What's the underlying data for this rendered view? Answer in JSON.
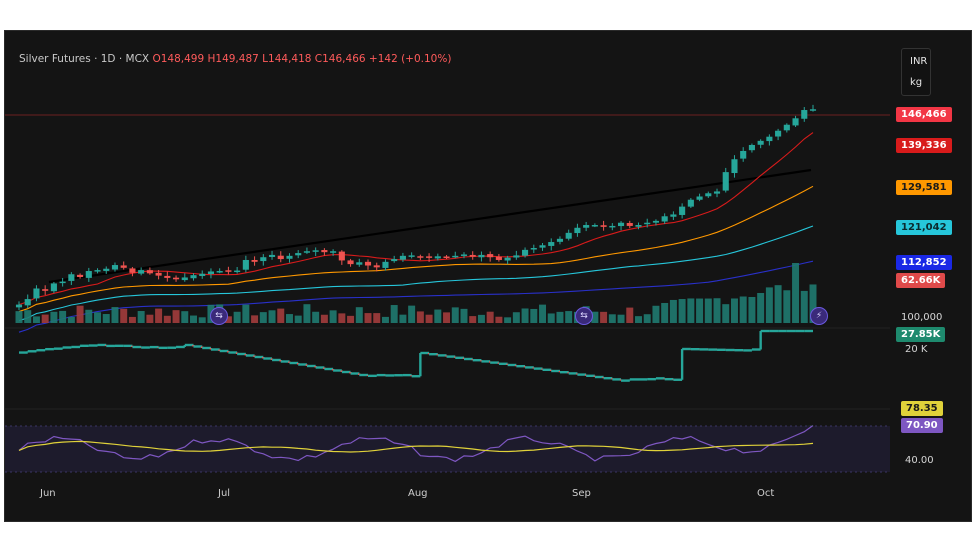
{
  "legend": {
    "symbol": "Silver Futures · 1D · MCX",
    "open": "O148,499",
    "high": "H149,487",
    "low": "L144,418",
    "close": "C146,466",
    "change": "+142 (+0.10%)"
  },
  "unit_box": {
    "currency": "INR",
    "unit": "kg"
  },
  "price_scale": {
    "last_price": "146,466",
    "ma_levels": [
      {
        "value": "139,336",
        "bg": "#d81b1b",
        "color": "#ffffff"
      },
      {
        "value": "129,581",
        "bg": "#ff9800",
        "color": "#1a1a1a"
      },
      {
        "value": "121,042",
        "bg": "#26c6da",
        "color": "#0b2a2e"
      },
      {
        "value": "112,852",
        "bg": "#1a28e6",
        "color": "#ffffff"
      }
    ],
    "volume_label": "62.66K",
    "volume_axis": "100,000"
  },
  "indicator2": {
    "value": "27.85K",
    "axis": "20 K"
  },
  "rsi": {
    "ma_value": "78.35",
    "value": "70.90",
    "axis": "40.00"
  },
  "months": [
    "Jun",
    "Jul",
    "Aug",
    "Sep",
    "Oct"
  ],
  "colors": {
    "up": "#26a69a",
    "down": "#ef5350",
    "ma_red": "#d81b1b",
    "ma_orange": "#ff9800",
    "ma_cyan": "#26c6da",
    "ma_blue": "#2930c9",
    "rsi_line": "#7e57c2",
    "rsi_ma": "#e0d23a"
  },
  "icons": [
    "dividend-icon",
    "dividend-icon",
    "lightning-icon"
  ],
  "chart_data": {
    "type": "candlestick",
    "title": "Silver Futures · 1D · MCX",
    "dates_range": [
      "Jun",
      "Oct"
    ],
    "price_range": [
      100000,
      150000
    ],
    "closes": [
      104000,
      105200,
      107500,
      107000,
      108600,
      109000,
      110600,
      110000,
      111300,
      111500,
      111800,
      112600,
      112000,
      110900,
      111500,
      110800,
      110300,
      109800,
      109500,
      109900,
      110400,
      110700,
      111200,
      111300,
      111200,
      111400,
      113700,
      113300,
      114300,
      114800,
      113900,
      114600,
      115200,
      115600,
      115800,
      115400,
      115600,
      113600,
      112800,
      113200,
      112500,
      112100,
      113300,
      113900,
      114600,
      114700,
      114500,
      114200,
      114500,
      114300,
      114600,
      114900,
      114400,
      114800,
      114300,
      113700,
      114200,
      114700,
      115900,
      116300,
      116900,
      117600,
      118300,
      119600,
      120700,
      121300,
      121300,
      120900,
      121100,
      121800,
      121100,
      121300,
      121800,
      122200,
      123200,
      123600,
      125300,
      126800,
      127500,
      128200,
      128600,
      132800,
      135600,
      137400,
      138700,
      139600,
      140500,
      141800,
      143100,
      144500,
      146300,
      146466
    ],
    "volume_note": "per-bar histogram",
    "rsi_last": 70.9,
    "rsi_ma_last": 78.35
  }
}
